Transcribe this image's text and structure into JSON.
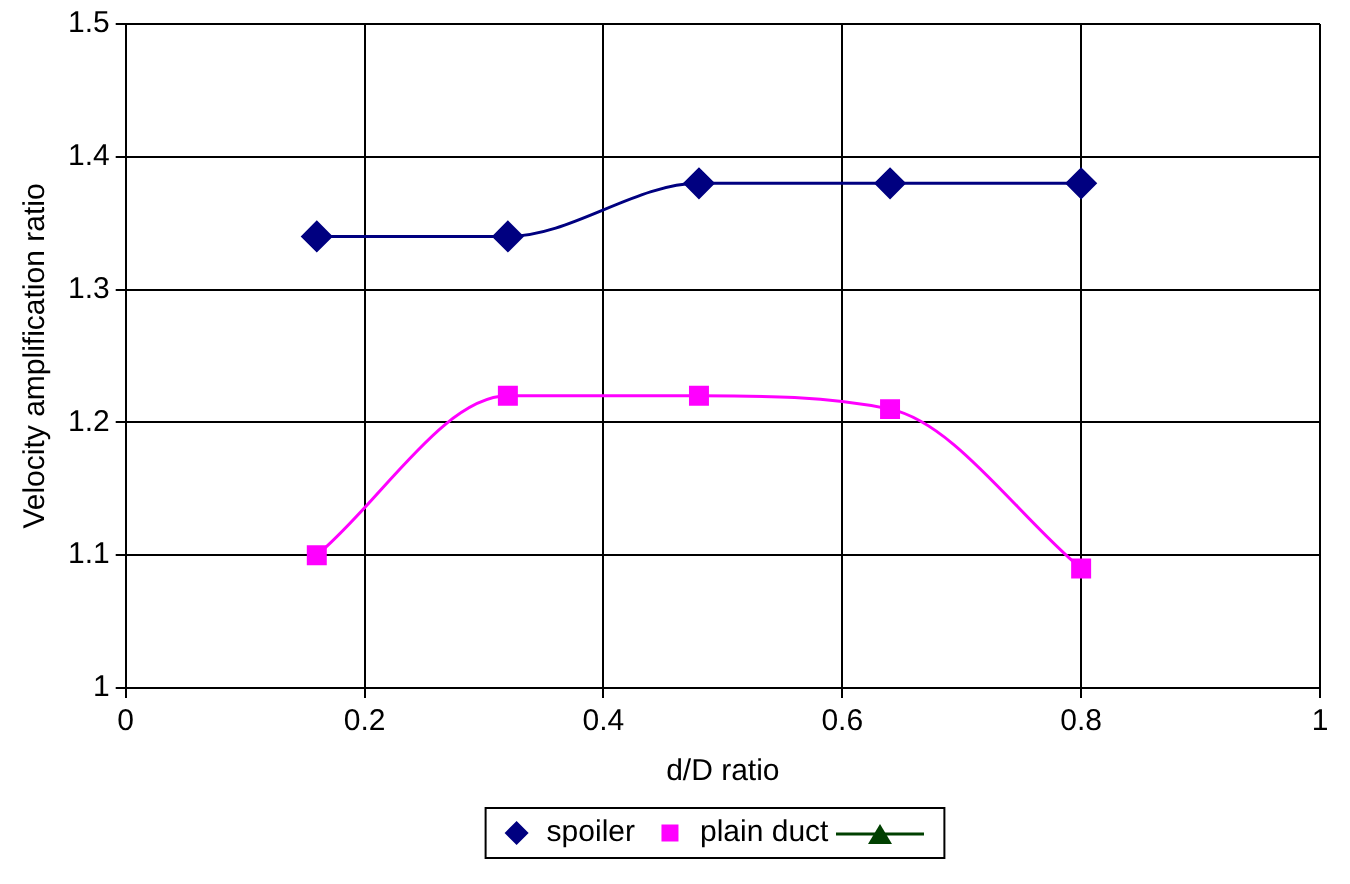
{
  "chart_data": {
    "type": "line",
    "xlabel": "d/D ratio",
    "ylabel": "Velocity amplification ratio",
    "x": [
      0.16,
      0.32,
      0.48,
      0.64,
      0.8
    ],
    "series": [
      {
        "name": "spoiler",
        "color": "#000080",
        "marker": "diamond",
        "values": [
          1.34,
          1.34,
          1.38,
          1.38,
          1.38
        ]
      },
      {
        "name": "plain duct",
        "color": "#ff00ff",
        "marker": "square",
        "values": [
          1.1,
          1.22,
          1.22,
          1.21,
          1.09
        ]
      }
    ],
    "xlim": [
      0,
      1
    ],
    "xticks": [
      0,
      0.2,
      0.4,
      0.6,
      0.8,
      1
    ],
    "ylim": [
      1,
      1.5
    ],
    "yticks": [
      1,
      1.1,
      1.2,
      1.3,
      1.4,
      1.5
    ],
    "grid": true,
    "legend": "bottom",
    "line_style": "solid"
  }
}
